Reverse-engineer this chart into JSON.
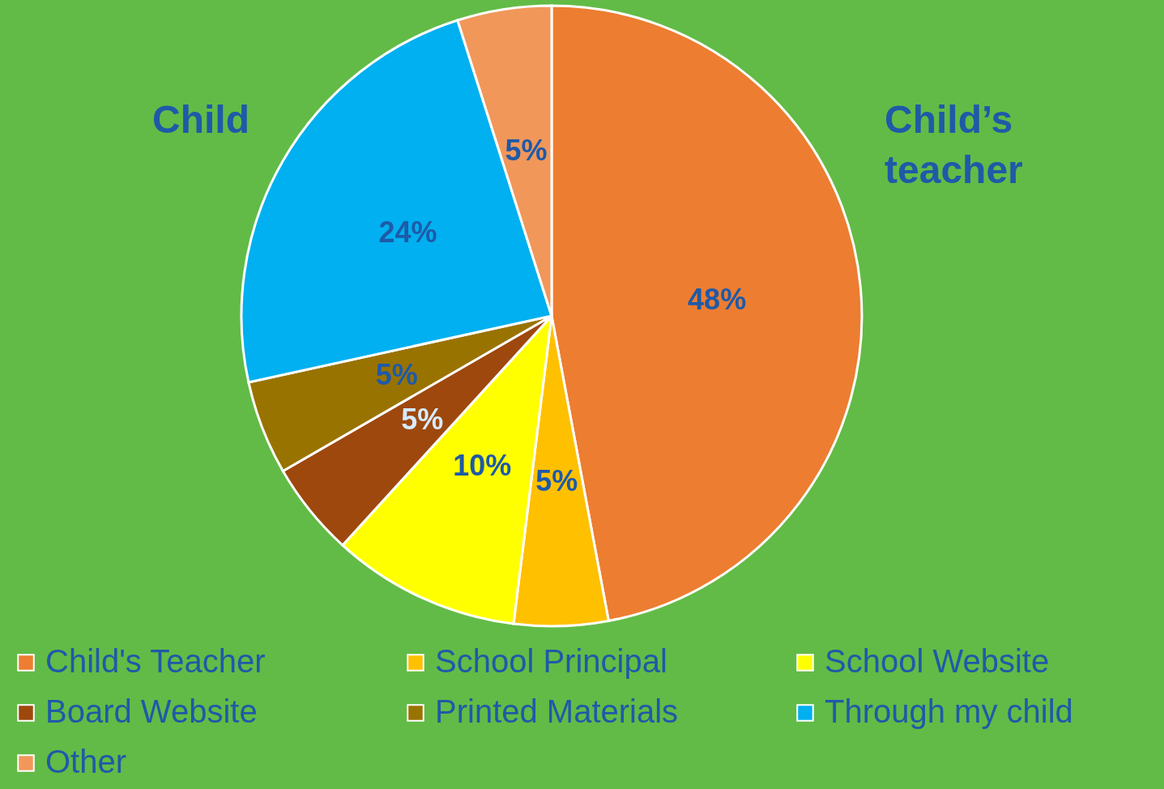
{
  "chart_data": {
    "type": "pie",
    "categories": [
      "Child's Teacher",
      "School Principal",
      "School Website",
      "Board Website",
      "Printed Materials",
      "Through my child",
      "Other"
    ],
    "values": [
      48,
      5,
      10,
      5,
      5,
      24,
      5
    ],
    "colors": [
      "#ed7d31",
      "#ffc000",
      "#ffff00",
      "#9e480e",
      "#997300",
      "#00b0f0",
      "#f1975a"
    ],
    "value_labels": [
      "48%",
      "5%",
      "10%",
      "5%",
      "5%",
      "24%",
      "5%"
    ],
    "annotations": [
      "Child’s teacher",
      "Child"
    ],
    "legend": "bottom"
  }
}
